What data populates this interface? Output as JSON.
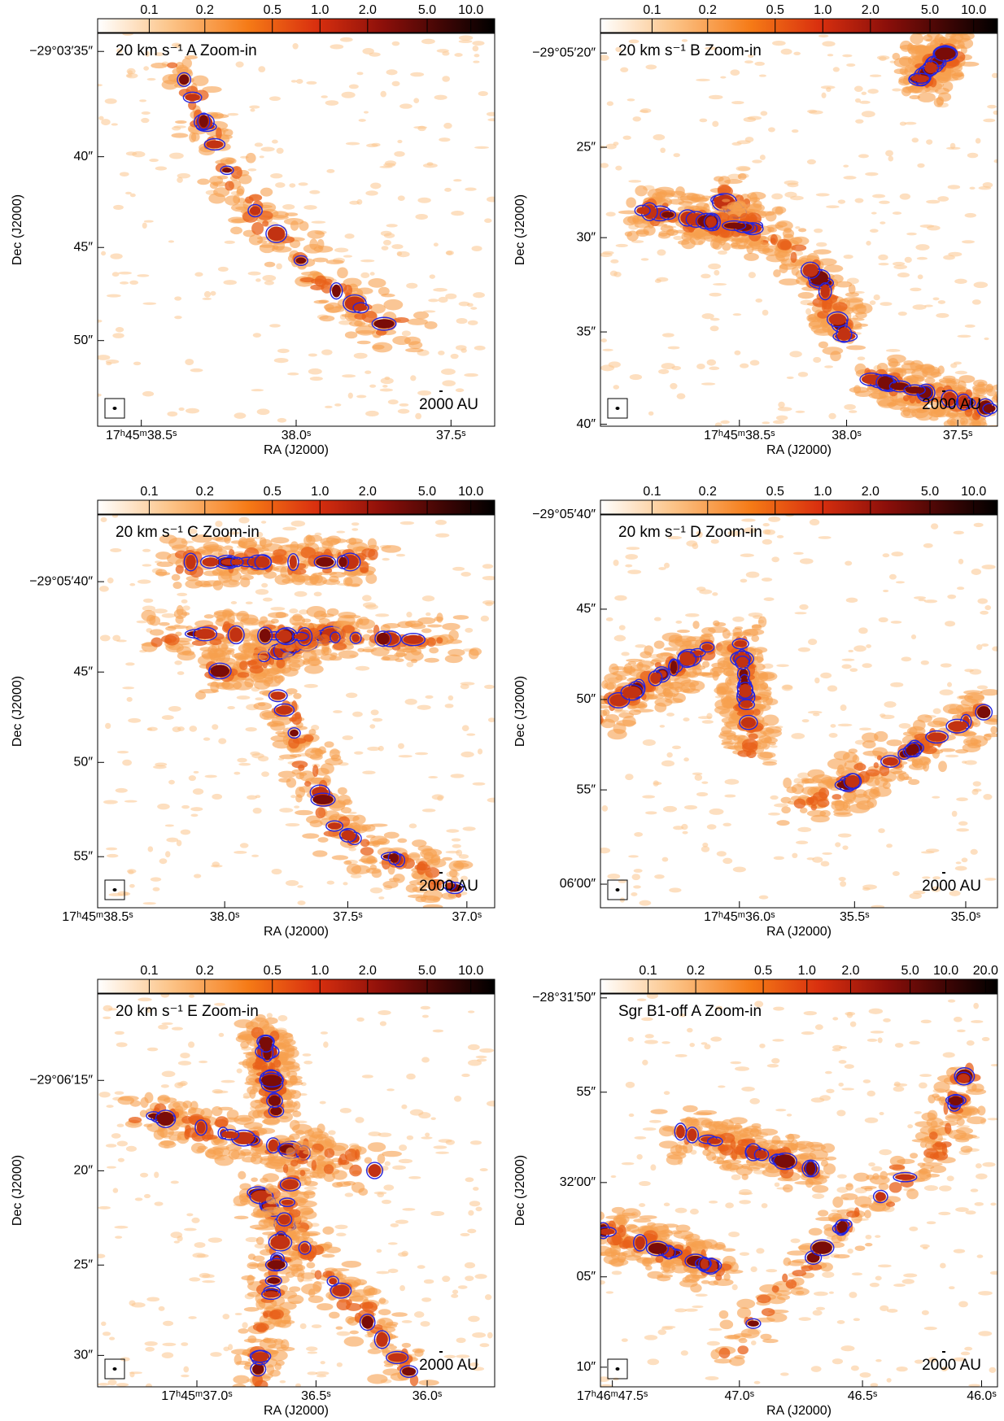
{
  "panels": [
    {
      "title": "20 km s⁻¹ A Zoom-in",
      "colorbar_ticks": [
        "0.1",
        "0.2",
        "0.5",
        "1.0",
        "2.0",
        "5.0",
        "10.0"
      ],
      "y_ticks": [
        "−29°03′35″",
        "40″",
        "45″",
        "50″"
      ],
      "x_ticks": [
        "17ʰ45ᵐ38.5ˢ",
        "38.0ˢ",
        "37.5ˢ"
      ],
      "x_label": "RA (J2000)",
      "y_label": "Dec (J2000)",
      "scale_label": "2000 AU"
    },
    {
      "title": "20 km s⁻¹ B Zoom-in",
      "colorbar_ticks": [
        "0.1",
        "0.2",
        "0.5",
        "1.0",
        "2.0",
        "5.0",
        "10.0"
      ],
      "y_ticks": [
        "−29°05′20″",
        "25″",
        "30″",
        "35″",
        "40″"
      ],
      "x_ticks": [
        "17ʰ45ᵐ38.5ˢ",
        "38.0ˢ",
        "37.5ˢ"
      ],
      "x_label": "RA (J2000)",
      "y_label": "Dec (J2000)",
      "scale_label": "2000 AU"
    },
    {
      "title": "20 km s⁻¹ C Zoom-in",
      "colorbar_ticks": [
        "0.1",
        "0.2",
        "0.5",
        "1.0",
        "2.0",
        "5.0",
        "10.0"
      ],
      "y_ticks": [
        "−29°05′40″",
        "45″",
        "50″",
        "55″"
      ],
      "x_ticks": [
        "17ʰ45ᵐ38.5ˢ",
        "38.0ˢ",
        "37.5ˢ",
        "37.0ˢ"
      ],
      "x_label": "RA (J2000)",
      "y_label": "Dec (J2000)",
      "scale_label": "2000 AU"
    },
    {
      "title": "20 km s⁻¹ D Zoom-in",
      "colorbar_ticks": [
        "0.1",
        "0.2",
        "0.5",
        "1.0",
        "2.0",
        "5.0",
        "10.0"
      ],
      "y_ticks": [
        "−29°05′40″",
        "45″",
        "50″",
        "55″",
        "06′00″"
      ],
      "x_ticks": [
        "17ʰ45ᵐ36.0ˢ",
        "35.5ˢ",
        "35.0ˢ"
      ],
      "x_label": "RA (J2000)",
      "y_label": "Dec (J2000)",
      "scale_label": "2000 AU"
    },
    {
      "title": "20 km s⁻¹ E Zoom-in",
      "colorbar_ticks": [
        "0.1",
        "0.2",
        "0.5",
        "1.0",
        "2.0",
        "5.0",
        "10.0"
      ],
      "y_ticks": [
        "−29°06′15″",
        "20″",
        "25″",
        "30″"
      ],
      "x_ticks": [
        "17ʰ45ᵐ37.0ˢ",
        "36.5ˢ",
        "36.0ˢ"
      ],
      "x_label": "RA (J2000)",
      "y_label": "Dec (J2000)",
      "scale_label": "2000 AU"
    },
    {
      "title": "Sgr B1-off A Zoom-in",
      "colorbar_ticks": [
        "0.1",
        "0.2",
        "0.5",
        "1.0",
        "2.0",
        "5.0",
        "10.0",
        "20.0"
      ],
      "y_ticks": [
        "−28°31′50″",
        "55″",
        "32′00″",
        "05″",
        "10″"
      ],
      "x_ticks": [
        "17ʰ46ᵐ47.5ˢ",
        "47.0ˢ",
        "46.5ˢ",
        "46.0ˢ"
      ],
      "x_label": "RA (J2000)",
      "y_label": "Dec (J2000)",
      "scale_label": "2000 AU"
    }
  ]
}
